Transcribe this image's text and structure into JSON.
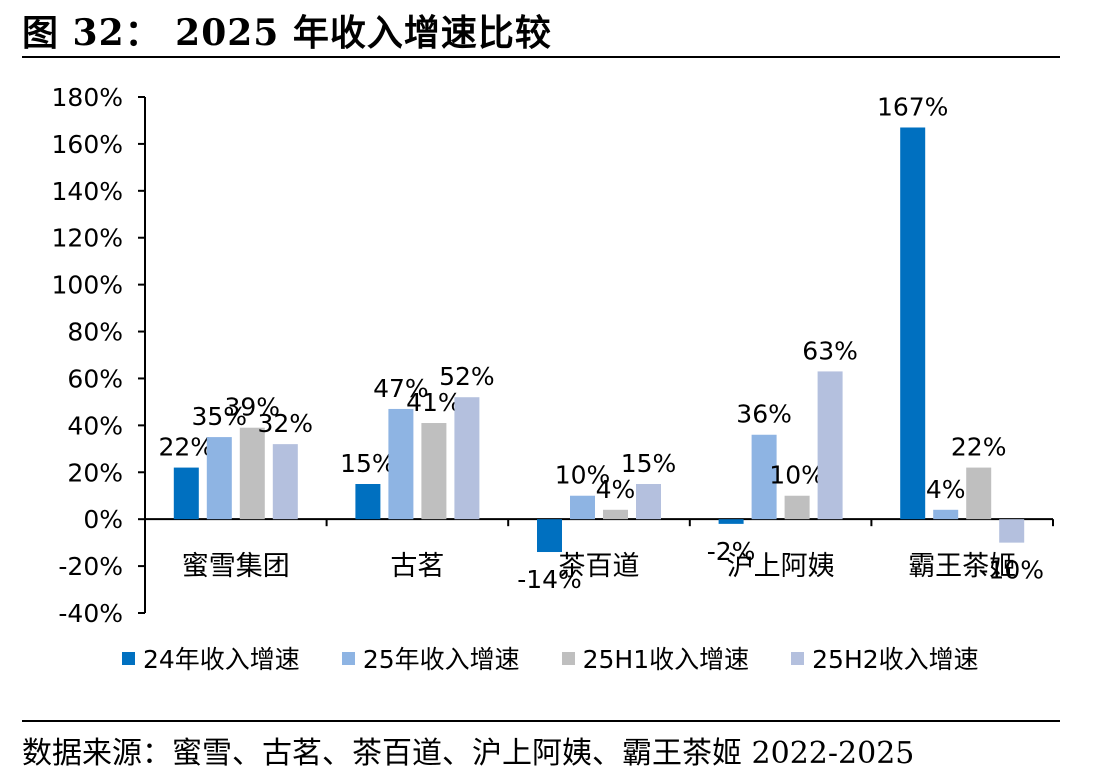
{
  "title": "图 32：  2025 年收入增速比较",
  "source": "数据来源：蜜雪、古茗、茶百道、沪上阿姨、霸王茶姬 2022-2025",
  "colors": {
    "s1": "#0070C0",
    "s2": "#8EB4E3",
    "s3": "#BFBFBF",
    "s4": "#B4C0DE",
    "axis": "#000000"
  },
  "chart_data": {
    "type": "bar",
    "categories": [
      "蜜雪集团",
      "古茗",
      "茶百道",
      "沪上阿姨",
      "霸王茶姬"
    ],
    "series": [
      {
        "name": "24年收入增速",
        "values": [
          22,
          15,
          -14,
          -2,
          167
        ]
      },
      {
        "name": "25年收入增速",
        "values": [
          35,
          47,
          10,
          36,
          4
        ]
      },
      {
        "name": "25H1收入增速",
        "values": [
          39,
          41,
          4,
          10,
          22
        ]
      },
      {
        "name": "25H2收入增速",
        "values": [
          32,
          52,
          15,
          63,
          -10
        ]
      }
    ],
    "yticks": [
      "180%",
      "160%",
      "140%",
      "120%",
      "100%",
      "80%",
      "60%",
      "40%",
      "20%",
      "0%",
      "-20%",
      "-40%"
    ],
    "ylim": [
      -40,
      180
    ],
    "grid": false,
    "legend_position": "bottom"
  }
}
